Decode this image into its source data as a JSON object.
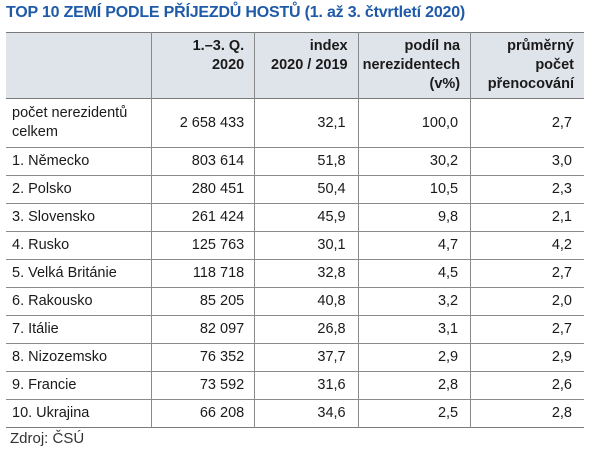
{
  "title": "TOP 10 ZEMÍ PODLE PŘÍJEZDŮ HOSTŮ (1. až 3. čtvrtletí 2020)",
  "headers": [
    "",
    "1.–3. Q.\n2020",
    "index\n2020 / 2019",
    "podíl na\nnerezidentech\n(v%)",
    "průměrný\npočet\npřenocování"
  ],
  "total_row": [
    "počet nerezidentů celkem",
    "2 658 433",
    "32,1",
    "100,0",
    "2,7"
  ],
  "rows": [
    [
      "1. Německo",
      "803 614",
      "51,8",
      "30,2",
      "3,0"
    ],
    [
      "2. Polsko",
      "280 451",
      "50,4",
      "10,5",
      "2,3"
    ],
    [
      "3. Slovensko",
      "261 424",
      "45,9",
      "9,8",
      "2,1"
    ],
    [
      "4. Rusko",
      "125 763",
      "30,1",
      "4,7",
      "4,2"
    ],
    [
      "5. Velká Británie",
      "118 718",
      "32,8",
      "4,5",
      "2,7"
    ],
    [
      "6. Rakousko",
      "85 205",
      "40,8",
      "3,2",
      "2,0"
    ],
    [
      "7. Itálie",
      "82 097",
      "26,8",
      "3,1",
      "2,7"
    ],
    [
      "8. Nizozemsko",
      "76 352",
      "37,7",
      "2,9",
      "2,9"
    ],
    [
      "9. Francie",
      "73 592",
      "31,6",
      "2,8",
      "2,6"
    ],
    [
      "10. Ukrajina",
      "66 208",
      "34,6",
      "2,5",
      "2,8"
    ]
  ],
  "source": "Zdroj: ČSÚ",
  "colors": {
    "title": "#1f5aa8",
    "header_bg": "#dfe3ea"
  }
}
